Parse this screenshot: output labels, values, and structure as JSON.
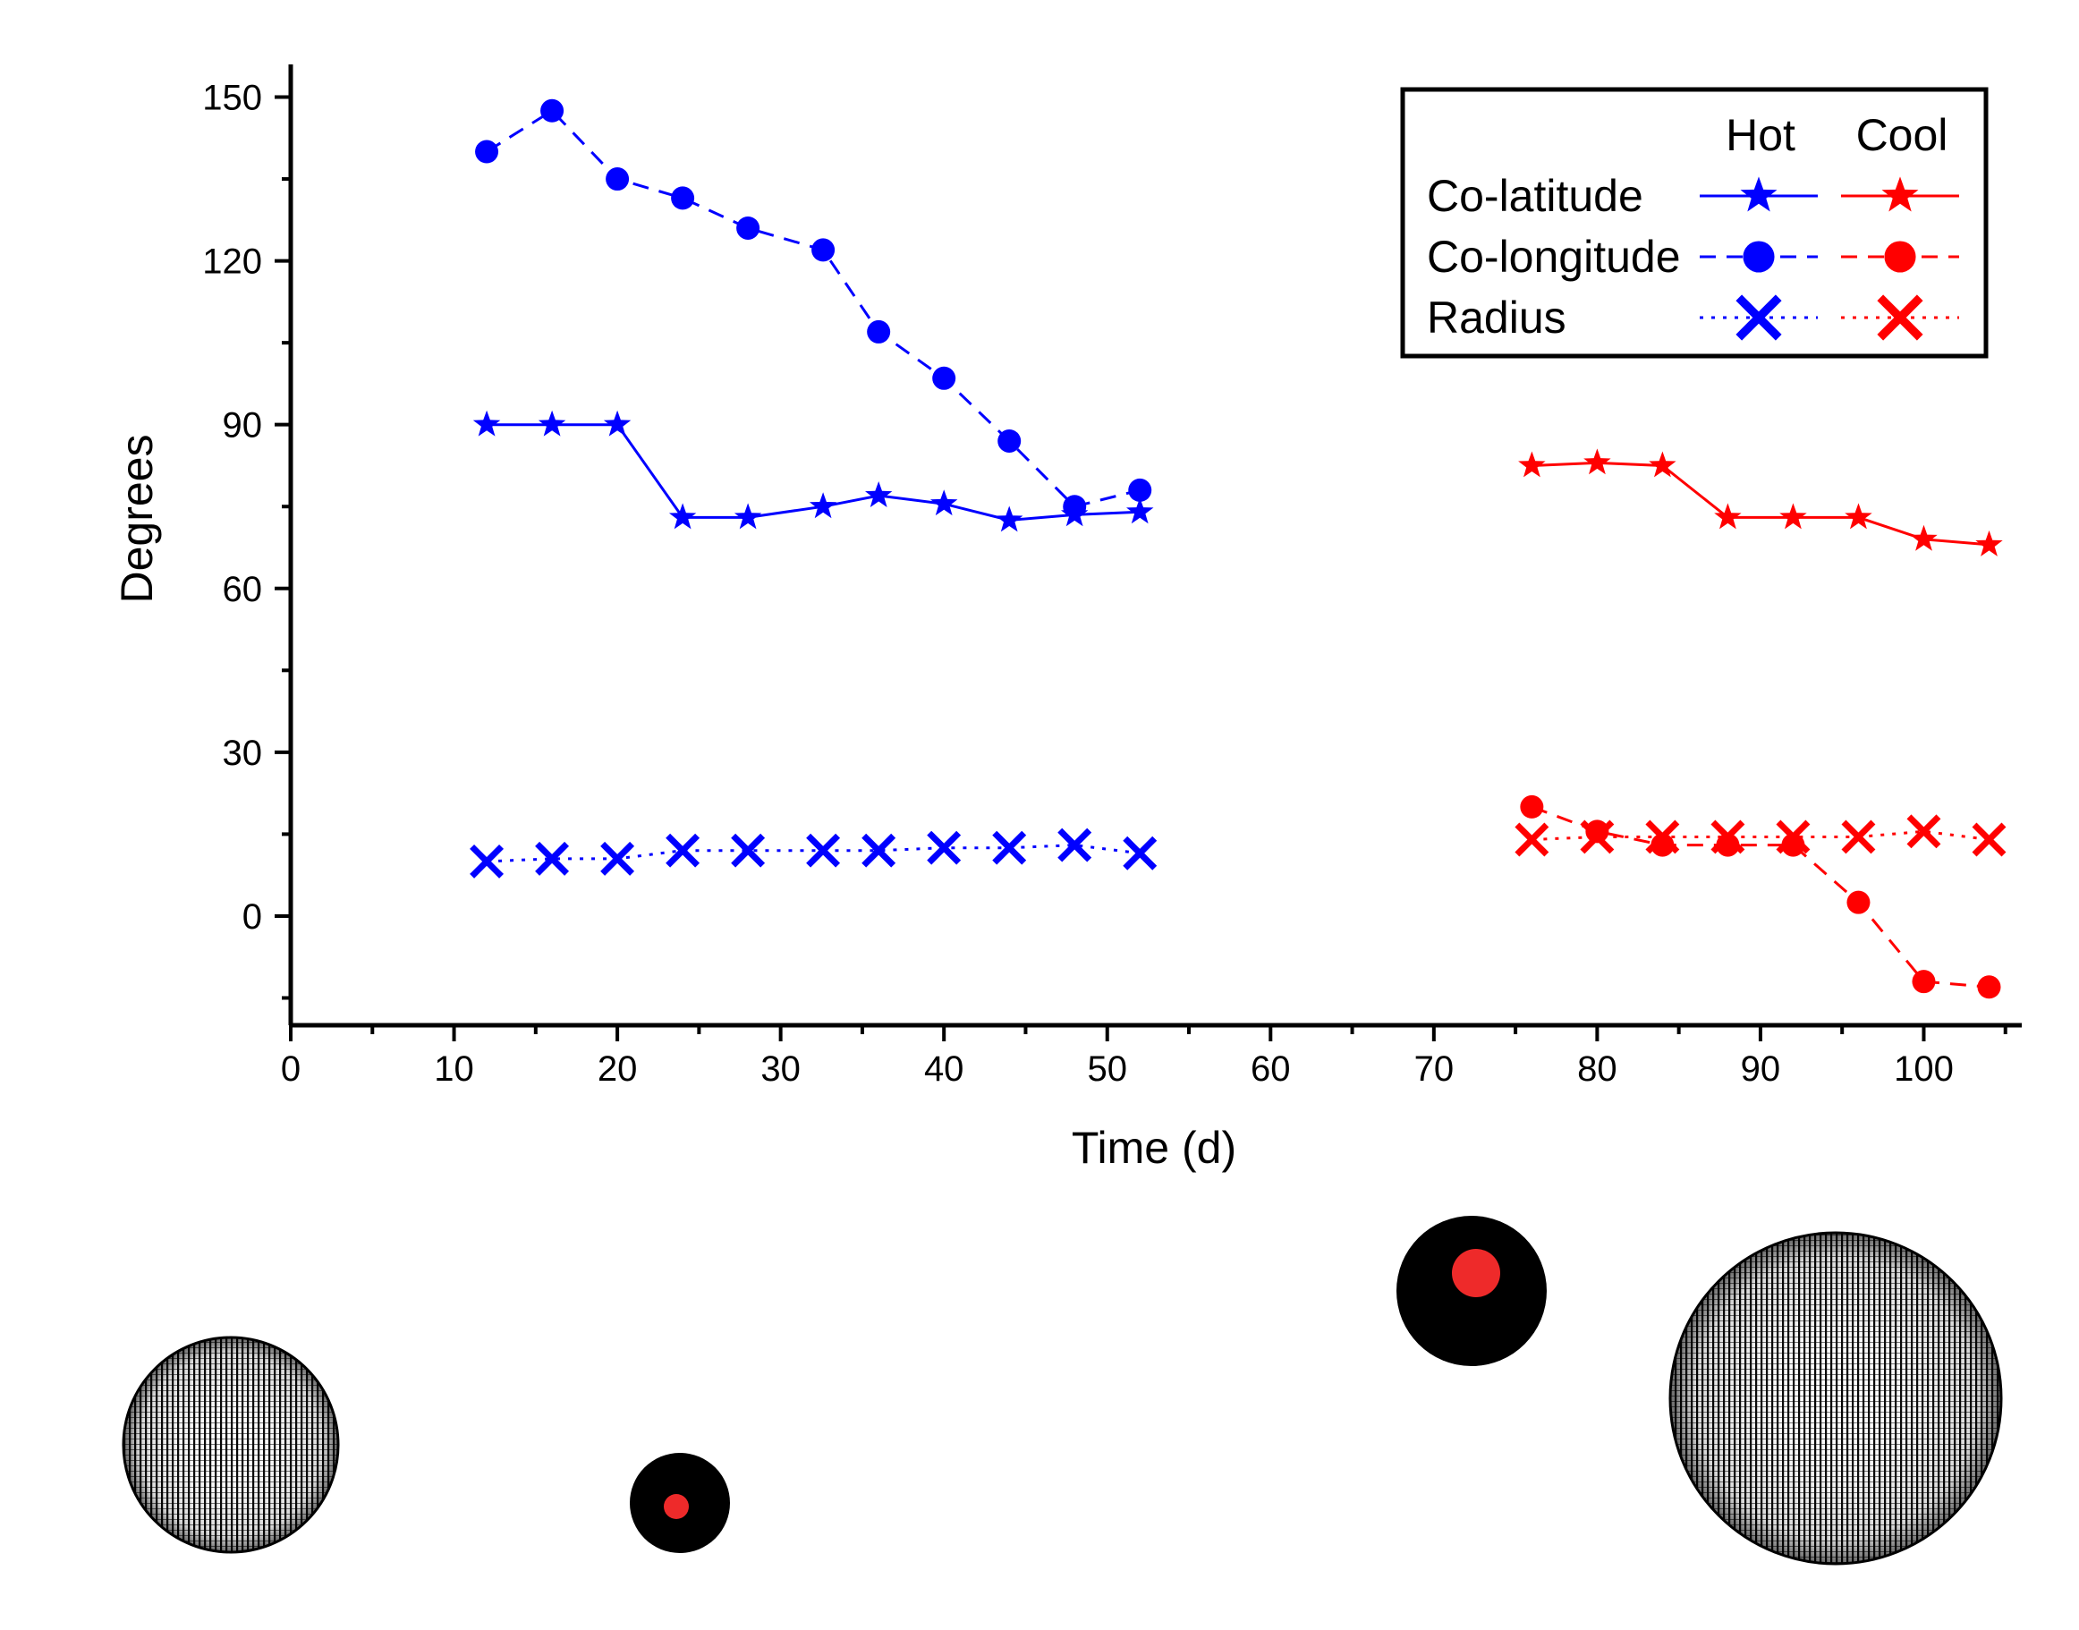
{
  "chart_data": {
    "type": "line",
    "xlabel": "Time (d)",
    "ylabel": "Degrees",
    "xlim": [
      0,
      106
    ],
    "ylim": [
      -20,
      155
    ],
    "xticks": [
      0,
      10,
      20,
      30,
      40,
      50,
      60,
      70,
      80,
      90,
      100
    ],
    "yticks": [
      0,
      30,
      60,
      90,
      120,
      150
    ],
    "legend": {
      "position": "top-right",
      "column_headers": [
        "Hot",
        "Cool"
      ],
      "rows": [
        "Co-latitude",
        "Co-longitude",
        "Radius"
      ]
    },
    "series": [
      {
        "name": "Co-latitude",
        "group": "Hot",
        "color": "#0000ff",
        "marker": "star",
        "line": "solid",
        "x": [
          12,
          16,
          20,
          24,
          28,
          32.6,
          36,
          40,
          44,
          48,
          52
        ],
        "values": [
          90,
          90,
          90,
          73,
          73,
          75,
          77,
          75.5,
          72.5,
          73.5,
          74
        ]
      },
      {
        "name": "Co-longitude",
        "group": "Hot",
        "color": "#0000ff",
        "marker": "circle",
        "line": "dashed",
        "x": [
          12,
          16,
          20,
          24,
          28,
          32.6,
          36,
          40,
          44,
          48,
          52
        ],
        "values": [
          140,
          147.5,
          135,
          131.5,
          126,
          122,
          107,
          98.5,
          87,
          75,
          78
        ]
      },
      {
        "name": "Radius",
        "group": "Hot",
        "color": "#0000ff",
        "marker": "cross",
        "line": "dotted",
        "x": [
          12,
          16,
          20,
          24,
          28,
          32.6,
          36,
          40,
          44,
          48,
          52
        ],
        "values": [
          10,
          10.5,
          10.5,
          12,
          12,
          12,
          12,
          12.5,
          12.5,
          13,
          11.5
        ]
      },
      {
        "name": "Co-latitude",
        "group": "Cool",
        "color": "#ff0000",
        "marker": "star",
        "line": "solid",
        "x": [
          76,
          80,
          84,
          88,
          92,
          96,
          100,
          104
        ],
        "values": [
          82.5,
          83,
          82.5,
          73,
          73,
          73,
          69,
          68
        ]
      },
      {
        "name": "Co-longitude",
        "group": "Cool",
        "color": "#ff0000",
        "marker": "circle",
        "line": "dashed",
        "x": [
          76,
          80,
          84,
          88,
          92,
          96,
          100,
          104
        ],
        "values": [
          20,
          15.5,
          13,
          13,
          13,
          2.5,
          -12,
          -13
        ]
      },
      {
        "name": "Radius",
        "group": "Cool",
        "color": "#ff0000",
        "marker": "cross",
        "line": "dotted",
        "x": [
          76,
          80,
          84,
          88,
          92,
          96,
          100,
          104
        ],
        "values": [
          14,
          14.5,
          14.5,
          14.5,
          14.5,
          14.5,
          15.5,
          14
        ]
      }
    ]
  },
  "colors": {
    "hot": "#0000ff",
    "cool": "#ff0000",
    "spot": "#ee2a2a",
    "sphere": "#000000"
  }
}
